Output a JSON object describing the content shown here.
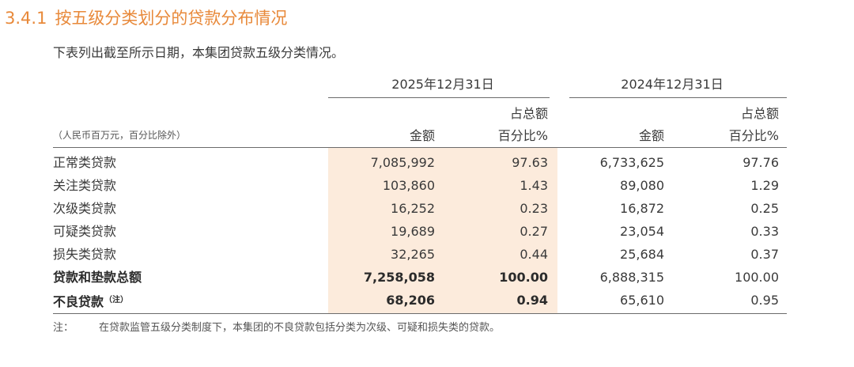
{
  "section": {
    "number": "3.4.1",
    "title": "按五级分类划分的贷款分布情况"
  },
  "intro": "下表列出截至所示日期，本集团贷款五级分类情况。",
  "table": {
    "unit_note": "（人民币百万元，百分比除外）",
    "period_2025": "2025年12月31日",
    "period_2024": "2024年12月31日",
    "col_amount": "金额",
    "col_pct_line1": "占总额",
    "col_pct_line2": "百分比%",
    "rows": [
      {
        "label": "正常类贷款",
        "amount_2025": "7,085,992",
        "pct_2025": "97.63",
        "amount_2024": "6,733,625",
        "pct_2024": "97.76",
        "bold": false
      },
      {
        "label": "关注类贷款",
        "amount_2025": "103,860",
        "pct_2025": "1.43",
        "amount_2024": "89,080",
        "pct_2024": "1.29",
        "bold": false
      },
      {
        "label": "次级类贷款",
        "amount_2025": "16,252",
        "pct_2025": "0.23",
        "amount_2024": "16,872",
        "pct_2024": "0.25",
        "bold": false
      },
      {
        "label": "可疑类贷款",
        "amount_2025": "19,689",
        "pct_2025": "0.27",
        "amount_2024": "23,054",
        "pct_2024": "0.33",
        "bold": false
      },
      {
        "label": "损失类贷款",
        "amount_2025": "32,265",
        "pct_2025": "0.44",
        "amount_2024": "25,684",
        "pct_2024": "0.37",
        "bold": false
      },
      {
        "label": "贷款和垫款总额",
        "amount_2025": "7,258,058",
        "pct_2025": "100.00",
        "amount_2024": "6,888,315",
        "pct_2024": "100.00",
        "bold": true
      },
      {
        "label": "不良贷款",
        "note_mark": "（注）",
        "amount_2025": "68,206",
        "pct_2025": "0.94",
        "amount_2024": "65,610",
        "pct_2024": "0.95",
        "bold": true
      }
    ]
  },
  "footnote": {
    "label": "注：",
    "text": "在贷款监管五级分类制度下，本集团的不良贷款包括分类为次级、可疑和损失类的贷款。"
  },
  "colors": {
    "title": "#e8893a",
    "highlight": "#fcebdc",
    "rule": "#6b6b6b",
    "text": "#3a3a3a"
  }
}
